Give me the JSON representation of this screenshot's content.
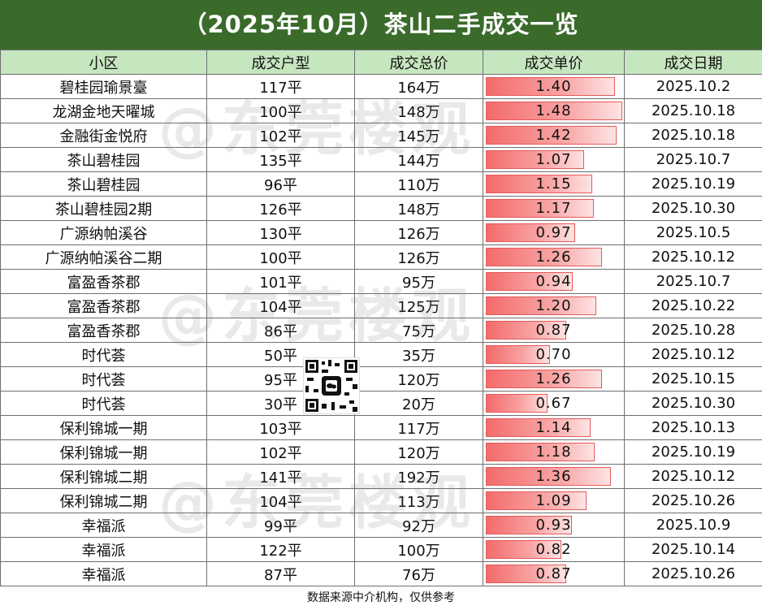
{
  "title": "（2025年10月）茶山二手成交一览",
  "columns": [
    "小区",
    "成交户型",
    "成交总价",
    "成交单价",
    "成交日期"
  ],
  "unit_price_max": 1.48,
  "rows": [
    {
      "name": "碧桂园瑜景臺",
      "area": "117平",
      "total": "164万",
      "unit": "1.40",
      "date": "2025.10.2"
    },
    {
      "name": "龙湖金地天曜城",
      "area": "100平",
      "total": "148万",
      "unit": "1.48",
      "date": "2025.10.18"
    },
    {
      "name": "金融街金悦府",
      "area": "102平",
      "total": "145万",
      "unit": "1.42",
      "date": "2025.10.18"
    },
    {
      "name": "茶山碧桂园",
      "area": "135平",
      "total": "144万",
      "unit": "1.07",
      "date": "2025.10.7"
    },
    {
      "name": "茶山碧桂园",
      "area": "96平",
      "total": "110万",
      "unit": "1.15",
      "date": "2025.10.19"
    },
    {
      "name": "茶山碧桂园2期",
      "area": "126平",
      "total": "148万",
      "unit": "1.17",
      "date": "2025.10.30"
    },
    {
      "name": "广源纳帕溪谷",
      "area": "130平",
      "total": "126万",
      "unit": "0.97",
      "date": "2025.10.5"
    },
    {
      "name": "广源纳帕溪谷二期",
      "area": "100平",
      "total": "126万",
      "unit": "1.26",
      "date": "2025.10.12"
    },
    {
      "name": "富盈香茶郡",
      "area": "101平",
      "total": "95万",
      "unit": "0.94",
      "date": "2025.10.7"
    },
    {
      "name": "富盈香茶郡",
      "area": "104平",
      "total": "125万",
      "unit": "1.20",
      "date": "2025.10.22"
    },
    {
      "name": "富盈香茶郡",
      "area": "86平",
      "total": "75万",
      "unit": "0.87",
      "date": "2025.10.28"
    },
    {
      "name": "时代荟",
      "area": "50平",
      "total": "35万",
      "unit": "0.70",
      "date": "2025.10.12"
    },
    {
      "name": "时代荟",
      "area": "95平",
      "total": "120万",
      "unit": "1.26",
      "date": "2025.10.15"
    },
    {
      "name": "时代荟",
      "area": "30平",
      "total": "20万",
      "unit": "0.67",
      "date": "2025.10.30"
    },
    {
      "name": "保利锦城一期",
      "area": "103平",
      "total": "117万",
      "unit": "1.14",
      "date": "2025.10.13"
    },
    {
      "name": "保利锦城一期",
      "area": "102平",
      "total": "120万",
      "unit": "1.18",
      "date": "2025.10.19"
    },
    {
      "name": "保利锦城二期",
      "area": "141平",
      "total": "192万",
      "unit": "1.36",
      "date": "2025.10.12"
    },
    {
      "name": "保利锦城二期",
      "area": "104平",
      "total": "113万",
      "unit": "1.09",
      "date": "2025.10.26"
    },
    {
      "name": "幸福派",
      "area": "99平",
      "total": "92万",
      "unit": "0.93",
      "date": "2025.10.9"
    },
    {
      "name": "幸福派",
      "area": "122平",
      "total": "100万",
      "unit": "0.82",
      "date": "2025.10.14"
    },
    {
      "name": "幸福派",
      "area": "87平",
      "total": "76万",
      "unit": "0.87",
      "date": "2025.10.26"
    }
  ],
  "watermark": "@东莞楼观",
  "qr_icon": "qr-code-icon",
  "footer": "数据来源中介机构，仅供参考",
  "colors": {
    "title_bg": "#3a6b2b",
    "header_bg": "#c6e6bf",
    "bar": "#f36b6b"
  }
}
